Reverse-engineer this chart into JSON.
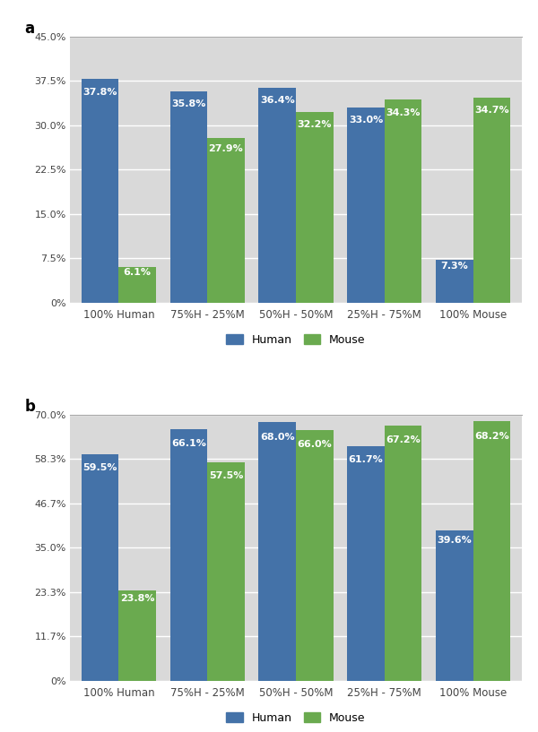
{
  "panel_a": {
    "categories": [
      "100% Human",
      "75%H - 25%M",
      "50%H - 50%M",
      "25%H - 75%M",
      "100% Mouse"
    ],
    "human_values": [
      37.8,
      35.8,
      36.4,
      33.0,
      7.3
    ],
    "mouse_values": [
      6.1,
      27.9,
      32.2,
      34.3,
      34.7
    ],
    "ylim": [
      0,
      45.0
    ],
    "yticks": [
      0,
      7.5,
      15.0,
      22.5,
      30.0,
      37.5,
      45.0
    ],
    "ytick_labels": [
      "0%",
      "7.5%",
      "15.0%",
      "22.5%",
      "30.0%",
      "37.5%",
      "45.0%"
    ]
  },
  "panel_b": {
    "categories": [
      "100% Human",
      "75%H - 25%M",
      "50%H - 50%M",
      "25%H - 75%M",
      "100% Mouse"
    ],
    "human_values": [
      59.5,
      66.1,
      68.0,
      61.7,
      39.6
    ],
    "mouse_values": [
      23.8,
      57.5,
      66.0,
      67.2,
      68.2
    ],
    "ylim": [
      0,
      70.0
    ],
    "yticks": [
      0,
      11.7,
      23.3,
      35.0,
      46.7,
      58.3,
      70.0
    ],
    "ytick_labels": [
      "0%",
      "11.7%",
      "23.3%",
      "35.0%",
      "46.7%",
      "58.3%",
      "70.0%"
    ]
  },
  "human_color": "#4472a8",
  "mouse_color": "#6aaa4f",
  "bar_width": 0.42,
  "label_color": "white",
  "label_fontsize": 8,
  "tick_fontsize": 8,
  "axis_label_fontsize": 8.5,
  "legend_fontsize": 9,
  "panel_label_fontsize": 12,
  "background_color": "#d9d9d9",
  "grid_color": "white",
  "top_spine_color": "#aaaaaa"
}
